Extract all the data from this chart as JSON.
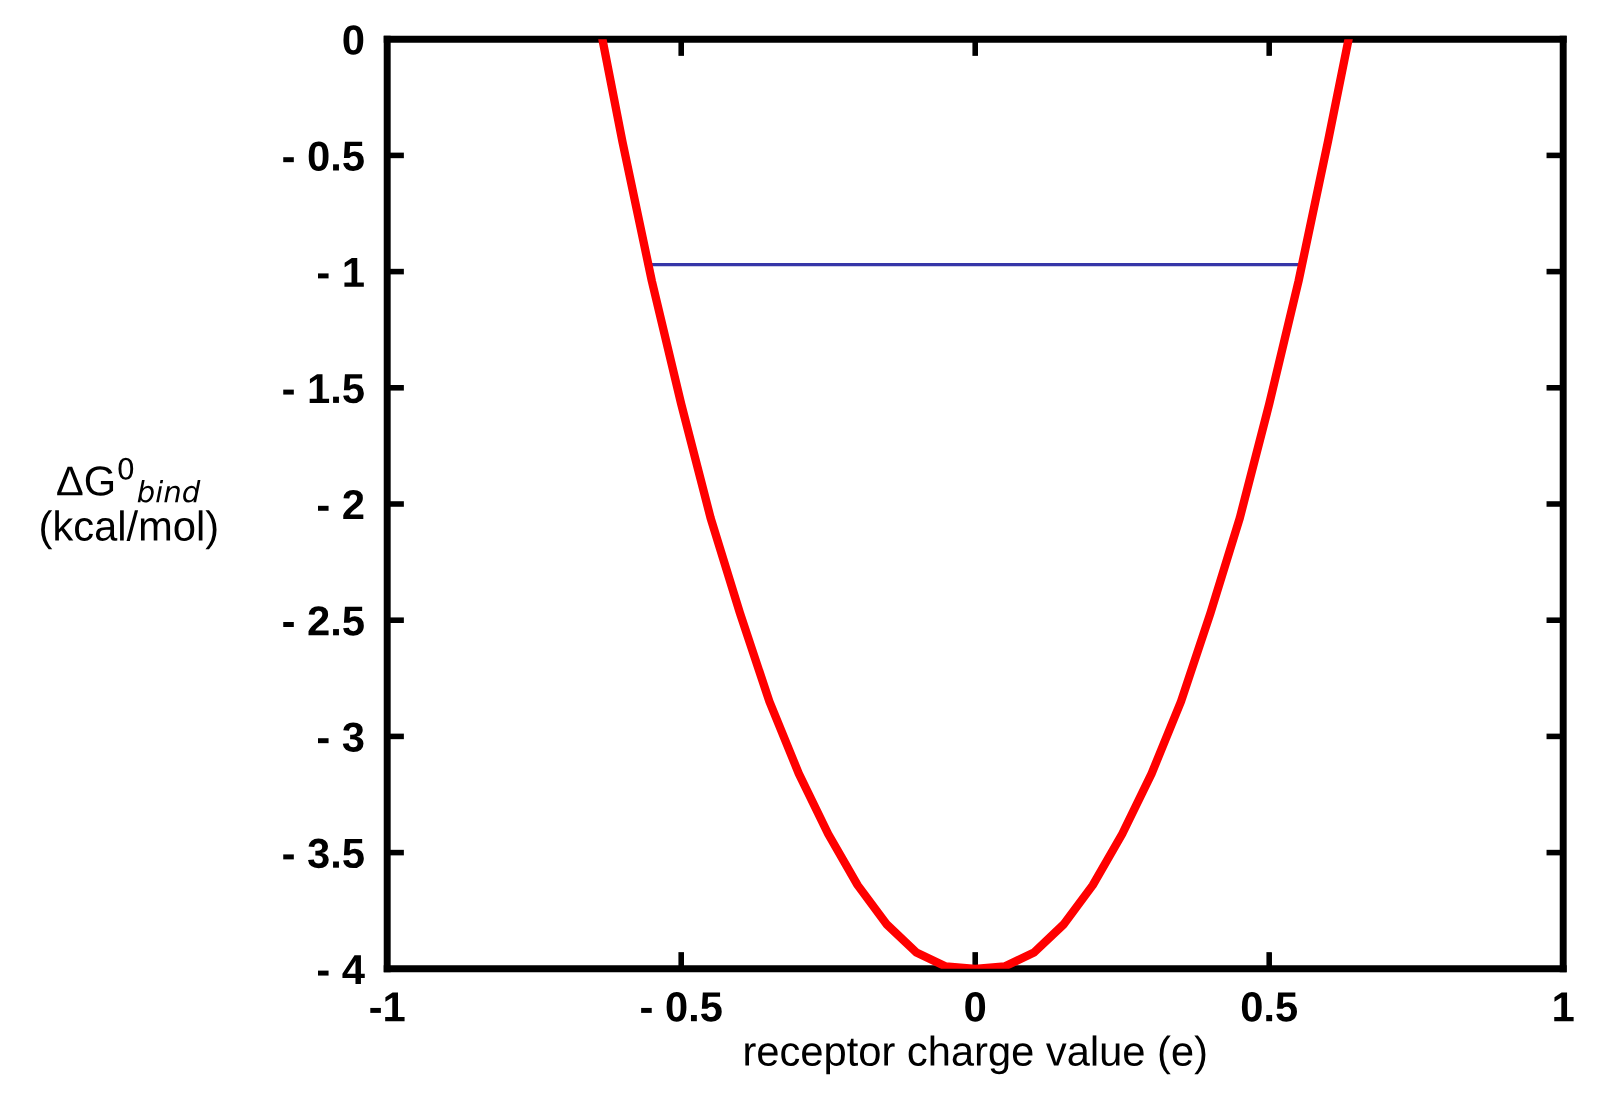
{
  "chart_data": {
    "type": "line",
    "xlabel": "receptor charge value (e)",
    "ylabel": "ΔG$^{0}$$_{bind}$\n(kcal/mol)",
    "xlim": [
      -1,
      1
    ],
    "ylim": [
      -4,
      0
    ],
    "xticks": [
      {
        "value": -1,
        "label": "-1"
      },
      {
        "value": -0.5,
        "label": "- 0.5"
      },
      0,
      0.5,
      1
    ],
    "yticks": [
      {
        "value": -4,
        "label": "- 4"
      },
      {
        "value": -3.5,
        "label": "- 3.5"
      },
      {
        "value": -3,
        "label": "- 3"
      },
      {
        "value": -2.5,
        "label": "- 2.5"
      },
      {
        "value": -2,
        "label": "- 2"
      },
      {
        "value": -1.5,
        "label": "- 1.5"
      },
      {
        "value": -1,
        "label": "- 1"
      },
      {
        "value": -0.5,
        "label": "- 0.5"
      },
      0
    ],
    "grid": false,
    "legend": false,
    "series": [
      {
        "color": "#ff0000",
        "x": [
          -0.634,
          -0.6,
          -0.55,
          -0.5,
          -0.45,
          -0.4,
          -0.35,
          -0.3,
          -0.25,
          -0.2,
          -0.15,
          -0.1,
          -0.05,
          0,
          0.05,
          0.1,
          0.15,
          0.2,
          0.25,
          0.3,
          0.35,
          0.4,
          0.45,
          0.5,
          0.55,
          0.6,
          0.635
        ],
        "values": [
          0,
          -0.44,
          -1.04,
          -1.57,
          -2.06,
          -2.47,
          -2.85,
          -3.16,
          -3.42,
          -3.64,
          -3.81,
          -3.93,
          -3.99,
          -4,
          -3.99,
          -3.93,
          -3.81,
          -3.64,
          -3.42,
          -3.16,
          -2.85,
          -2.47,
          -2.06,
          -1.57,
          -1.04,
          -0.44,
          0
        ]
      },
      {
        "color": "#3636a8",
        "x": [
          -0.553,
          0.548
        ],
        "values": [
          -0.97,
          -0.97
        ]
      }
    ]
  }
}
